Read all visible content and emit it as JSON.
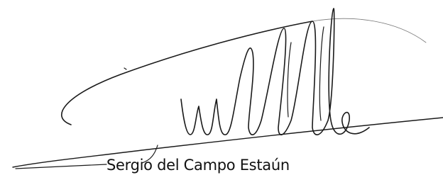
{
  "signature": {
    "name": "Sergio del Campo Estaún"
  }
}
